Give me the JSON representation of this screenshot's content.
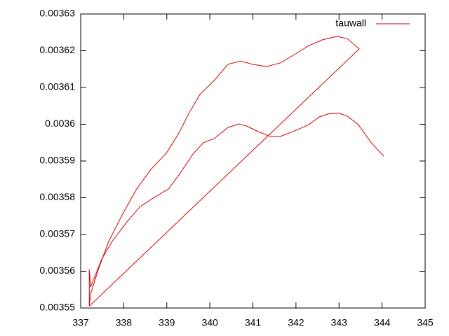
{
  "chart_data": {
    "type": "line",
    "series": [
      {
        "name": "tauwall",
        "color": "#d00000",
        "x": [
          344.04,
          343.76,
          343.44,
          343.19,
          343.0,
          342.75,
          342.54,
          342.3,
          342.05,
          341.64,
          341.4,
          341.12,
          340.86,
          340.67,
          340.42,
          340.1,
          339.85,
          339.61,
          339.28,
          339.04,
          338.71,
          338.38,
          338.06,
          337.73,
          337.49,
          337.33,
          337.23,
          337.2,
          337.2,
          337.23,
          337.41,
          337.65,
          337.98,
          338.3,
          338.63,
          339.0,
          339.28,
          339.53,
          339.77,
          340.1,
          340.42,
          340.71,
          340.99,
          341.32,
          341.64,
          341.97,
          342.3,
          342.62,
          342.95,
          343.19,
          343.47,
          337.2
        ],
        "values": [
          0.0035913,
          0.0035948,
          0.0036,
          0.0036022,
          0.003603,
          0.0036028,
          0.003602,
          0.0035999,
          0.0035986,
          0.0035967,
          0.0035967,
          0.003598,
          0.0035995,
          0.0036001,
          0.0035991,
          0.0035961,
          0.003595,
          0.0035919,
          0.0035862,
          0.0035824,
          0.0035801,
          0.0035776,
          0.0035732,
          0.0035681,
          0.0035633,
          0.0035586,
          0.0035557,
          0.0035605,
          0.0035506,
          0.0035538,
          0.0035605,
          0.0035681,
          0.0035757,
          0.0035824,
          0.0035877,
          0.0035923,
          0.0035976,
          0.0036033,
          0.0036081,
          0.0036119,
          0.0036163,
          0.0036172,
          0.0036163,
          0.0036157,
          0.0036167,
          0.003619,
          0.0036214,
          0.003623,
          0.0036239,
          0.0036233,
          0.0036205,
          0.0035505
        ]
      }
    ],
    "xlim": [
      337,
      345
    ],
    "xticks": [
      337,
      338,
      339,
      340,
      341,
      342,
      343,
      344,
      345
    ],
    "ylim": [
      0.00355,
      0.00363
    ],
    "yticks": [
      0.00355,
      0.00356,
      0.00357,
      0.00358,
      0.00359,
      0.0036,
      0.00361,
      0.00362,
      0.00363
    ],
    "legend": "top-right"
  }
}
